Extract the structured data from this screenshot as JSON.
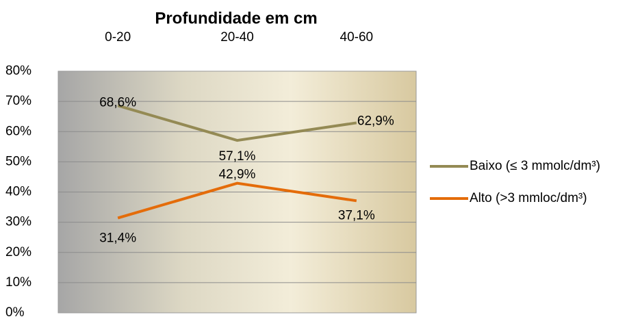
{
  "chart_data": {
    "type": "line",
    "title": "Profundidade em cm",
    "categories": [
      "0-20",
      "20-40",
      "40-60"
    ],
    "series": [
      {
        "name": "Baixo (≤ 3 mmolc/dm³)",
        "color": "#948a54",
        "values": [
          68.6,
          57.1,
          62.9
        ],
        "value_labels": [
          "68,6%",
          "57,1%",
          "62,9%"
        ]
      },
      {
        "name": "Alto (>3 mmloc/dm³)",
        "color": "#e46c0a",
        "values": [
          31.4,
          42.9,
          37.1
        ],
        "value_labels": [
          "31,4%",
          "42,9%",
          "37,1%"
        ]
      }
    ],
    "ylim": [
      0,
      80
    ],
    "yticks": [
      {
        "value": 0,
        "label": "0%"
      },
      {
        "value": 10,
        "label": "10%"
      },
      {
        "value": 20,
        "label": "20%"
      },
      {
        "value": 30,
        "label": "30%"
      },
      {
        "value": 40,
        "label": "40%"
      },
      {
        "value": 50,
        "label": "50%"
      },
      {
        "value": 60,
        "label": "60%"
      },
      {
        "value": 70,
        "label": "70%"
      },
      {
        "value": 80,
        "label": "80%"
      }
    ],
    "grid": true,
    "legend": "right"
  }
}
